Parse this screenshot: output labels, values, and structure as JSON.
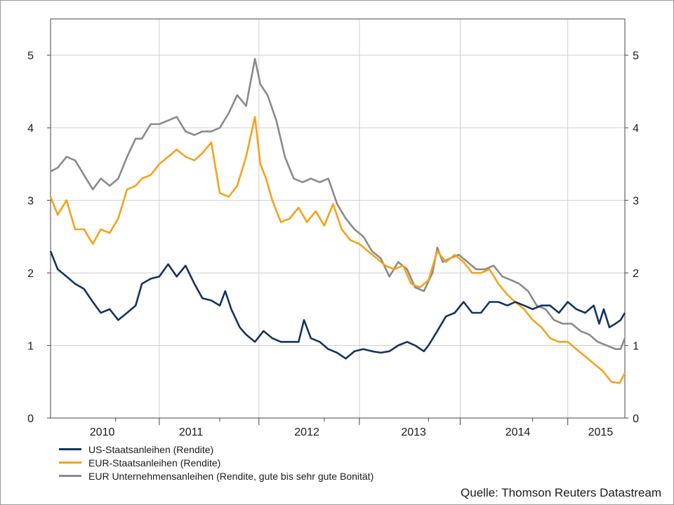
{
  "chart_data": {
    "type": "line",
    "x_tick_labels": [
      "2010",
      "2011",
      "2012",
      "2013",
      "2014",
      "2015"
    ],
    "xlim": [
      "2009-09-15",
      "2015-03-20"
    ],
    "x_label_dates": [
      "2010-03-15",
      "2011-01-20",
      "2012-03-01",
      "2013-03-10",
      "2014-03-10",
      "2014-12-25"
    ],
    "x_major_dates": [
      "2010-10-01",
      "2011-09-15",
      "2012-09-01",
      "2013-08-20",
      "2014-09-01"
    ],
    "x_minor_dates": [
      "2010-05-01",
      "2011-05-01",
      "2012-05-01",
      "2013-05-01",
      "2014-05-01"
    ],
    "ylim": [
      0,
      5.5
    ],
    "y_ticks": [
      0,
      1,
      2,
      3,
      4,
      5
    ],
    "y_tick_labels": [
      "0",
      "1",
      "2",
      "3",
      "4",
      "5"
    ],
    "grid": true,
    "legend_position": "bottom-left",
    "series": [
      {
        "name": "US-Staatsanleihen (Rendite)",
        "color": "#13335f",
        "points": [
          [
            "2009-09-15",
            2.3
          ],
          [
            "2009-10-10",
            2.05
          ],
          [
            "2009-11-10",
            1.95
          ],
          [
            "2009-12-10",
            1.85
          ],
          [
            "2010-01-10",
            1.78
          ],
          [
            "2010-02-10",
            1.6
          ],
          [
            "2010-03-10",
            1.45
          ],
          [
            "2010-04-10",
            1.5
          ],
          [
            "2010-05-10",
            1.35
          ],
          [
            "2010-06-10",
            1.45
          ],
          [
            "2010-07-10",
            1.55
          ],
          [
            "2010-08-01",
            1.85
          ],
          [
            "2010-09-01",
            1.92
          ],
          [
            "2010-10-01",
            1.95
          ],
          [
            "2010-11-01",
            2.12
          ],
          [
            "2010-12-01",
            1.95
          ],
          [
            "2011-01-01",
            2.1
          ],
          [
            "2011-02-01",
            1.85
          ],
          [
            "2011-03-01",
            1.65
          ],
          [
            "2011-04-01",
            1.62
          ],
          [
            "2011-05-01",
            1.55
          ],
          [
            "2011-05-20",
            1.75
          ],
          [
            "2011-06-10",
            1.5
          ],
          [
            "2011-07-10",
            1.25
          ],
          [
            "2011-08-01",
            1.15
          ],
          [
            "2011-09-01",
            1.05
          ],
          [
            "2011-10-01",
            1.2
          ],
          [
            "2011-11-01",
            1.1
          ],
          [
            "2011-12-01",
            1.05
          ],
          [
            "2012-01-01",
            1.05
          ],
          [
            "2012-02-01",
            1.05
          ],
          [
            "2012-02-20",
            1.35
          ],
          [
            "2012-03-15",
            1.1
          ],
          [
            "2012-04-15",
            1.05
          ],
          [
            "2012-05-15",
            0.95
          ],
          [
            "2012-06-15",
            0.9
          ],
          [
            "2012-07-15",
            0.82
          ],
          [
            "2012-08-15",
            0.92
          ],
          [
            "2012-09-15",
            0.95
          ],
          [
            "2012-10-15",
            0.92
          ],
          [
            "2012-11-15",
            0.9
          ],
          [
            "2012-12-15",
            0.92
          ],
          [
            "2013-01-15",
            1.0
          ],
          [
            "2013-02-15",
            1.05
          ],
          [
            "2013-03-15",
            1.0
          ],
          [
            "2013-04-15",
            0.92
          ],
          [
            "2013-05-01",
            1.0
          ],
          [
            "2013-06-01",
            1.2
          ],
          [
            "2013-07-01",
            1.4
          ],
          [
            "2013-08-01",
            1.45
          ],
          [
            "2013-09-01",
            1.6
          ],
          [
            "2013-10-01",
            1.45
          ],
          [
            "2013-11-01",
            1.45
          ],
          [
            "2013-12-01",
            1.6
          ],
          [
            "2014-01-01",
            1.6
          ],
          [
            "2014-02-01",
            1.55
          ],
          [
            "2014-03-01",
            1.6
          ],
          [
            "2014-04-01",
            1.55
          ],
          [
            "2014-05-01",
            1.5
          ],
          [
            "2014-06-01",
            1.55
          ],
          [
            "2014-07-01",
            1.55
          ],
          [
            "2014-08-01",
            1.45
          ],
          [
            "2014-09-01",
            1.6
          ],
          [
            "2014-10-01",
            1.5
          ],
          [
            "2014-11-01",
            1.45
          ],
          [
            "2014-12-01",
            1.55
          ],
          [
            "2014-12-20",
            1.3
          ],
          [
            "2015-01-05",
            1.5
          ],
          [
            "2015-01-25",
            1.25
          ],
          [
            "2015-02-15",
            1.3
          ],
          [
            "2015-03-05",
            1.35
          ],
          [
            "2015-03-20",
            1.45
          ]
        ]
      },
      {
        "name": "EUR-Staatsanleihen (Rendite)",
        "color": "#f6a21a",
        "points": [
          [
            "2009-09-15",
            3.05
          ],
          [
            "2009-10-10",
            2.8
          ],
          [
            "2009-11-10",
            3.0
          ],
          [
            "2009-12-10",
            2.6
          ],
          [
            "2010-01-10",
            2.6
          ],
          [
            "2010-02-10",
            2.4
          ],
          [
            "2010-03-10",
            2.6
          ],
          [
            "2010-04-10",
            2.55
          ],
          [
            "2010-05-10",
            2.75
          ],
          [
            "2010-06-10",
            3.15
          ],
          [
            "2010-07-10",
            3.2
          ],
          [
            "2010-08-01",
            3.3
          ],
          [
            "2010-09-01",
            3.35
          ],
          [
            "2010-10-01",
            3.5
          ],
          [
            "2010-11-01",
            3.6
          ],
          [
            "2010-12-01",
            3.7
          ],
          [
            "2011-01-01",
            3.6
          ],
          [
            "2011-02-01",
            3.55
          ],
          [
            "2011-03-01",
            3.65
          ],
          [
            "2011-04-01",
            3.8
          ],
          [
            "2011-05-01",
            3.1
          ],
          [
            "2011-06-01",
            3.05
          ],
          [
            "2011-07-01",
            3.2
          ],
          [
            "2011-08-01",
            3.6
          ],
          [
            "2011-09-01",
            4.15
          ],
          [
            "2011-09-20",
            3.5
          ],
          [
            "2011-10-10",
            3.3
          ],
          [
            "2011-11-01",
            3.0
          ],
          [
            "2011-12-01",
            2.7
          ],
          [
            "2012-01-01",
            2.75
          ],
          [
            "2012-02-01",
            2.9
          ],
          [
            "2012-03-01",
            2.7
          ],
          [
            "2012-04-01",
            2.85
          ],
          [
            "2012-05-01",
            2.65
          ],
          [
            "2012-06-01",
            2.95
          ],
          [
            "2012-07-01",
            2.6
          ],
          [
            "2012-08-01",
            2.45
          ],
          [
            "2012-09-01",
            2.4
          ],
          [
            "2012-10-01",
            2.3
          ],
          [
            "2012-11-01",
            2.2
          ],
          [
            "2012-12-01",
            2.1
          ],
          [
            "2013-01-01",
            2.05
          ],
          [
            "2013-02-01",
            2.1
          ],
          [
            "2013-03-01",
            1.85
          ],
          [
            "2013-04-01",
            1.8
          ],
          [
            "2013-05-01",
            1.9
          ],
          [
            "2013-06-01",
            2.3
          ],
          [
            "2013-07-01",
            2.15
          ],
          [
            "2013-08-01",
            2.25
          ],
          [
            "2013-09-01",
            2.15
          ],
          [
            "2013-10-01",
            2.0
          ],
          [
            "2013-11-01",
            2.0
          ],
          [
            "2013-12-01",
            2.05
          ],
          [
            "2014-01-01",
            1.85
          ],
          [
            "2014-02-01",
            1.7
          ],
          [
            "2014-03-01",
            1.6
          ],
          [
            "2014-04-01",
            1.5
          ],
          [
            "2014-05-01",
            1.35
          ],
          [
            "2014-06-01",
            1.25
          ],
          [
            "2014-07-01",
            1.1
          ],
          [
            "2014-08-01",
            1.05
          ],
          [
            "2014-09-01",
            1.05
          ],
          [
            "2014-10-01",
            0.95
          ],
          [
            "2014-11-01",
            0.85
          ],
          [
            "2014-12-01",
            0.75
          ],
          [
            "2015-01-01",
            0.65
          ],
          [
            "2015-02-01",
            0.5
          ],
          [
            "2015-03-01",
            0.48
          ],
          [
            "2015-03-20",
            0.62
          ]
        ]
      },
      {
        "name": "EUR Unternehmensanleihen (Rendite, gute bis sehr gute Bonität)",
        "color": "#8a8a8a",
        "points": [
          [
            "2009-09-15",
            3.4
          ],
          [
            "2009-10-10",
            3.45
          ],
          [
            "2009-11-10",
            3.6
          ],
          [
            "2009-12-10",
            3.55
          ],
          [
            "2010-01-10",
            3.35
          ],
          [
            "2010-02-10",
            3.15
          ],
          [
            "2010-03-10",
            3.3
          ],
          [
            "2010-04-10",
            3.2
          ],
          [
            "2010-05-10",
            3.3
          ],
          [
            "2010-06-10",
            3.6
          ],
          [
            "2010-07-10",
            3.85
          ],
          [
            "2010-08-01",
            3.85
          ],
          [
            "2010-09-01",
            4.05
          ],
          [
            "2010-10-01",
            4.05
          ],
          [
            "2010-11-01",
            4.1
          ],
          [
            "2010-12-01",
            4.15
          ],
          [
            "2011-01-01",
            3.95
          ],
          [
            "2011-02-01",
            3.9
          ],
          [
            "2011-03-01",
            3.95
          ],
          [
            "2011-04-01",
            3.95
          ],
          [
            "2011-05-01",
            4.0
          ],
          [
            "2011-06-01",
            4.2
          ],
          [
            "2011-07-01",
            4.45
          ],
          [
            "2011-08-01",
            4.3
          ],
          [
            "2011-09-01",
            4.95
          ],
          [
            "2011-09-20",
            4.6
          ],
          [
            "2011-10-15",
            4.45
          ],
          [
            "2011-11-15",
            4.1
          ],
          [
            "2011-12-15",
            3.6
          ],
          [
            "2012-01-15",
            3.3
          ],
          [
            "2012-02-15",
            3.25
          ],
          [
            "2012-03-15",
            3.3
          ],
          [
            "2012-04-15",
            3.25
          ],
          [
            "2012-05-15",
            3.3
          ],
          [
            "2012-06-15",
            2.95
          ],
          [
            "2012-07-15",
            2.75
          ],
          [
            "2012-08-15",
            2.6
          ],
          [
            "2012-09-15",
            2.5
          ],
          [
            "2012-10-15",
            2.3
          ],
          [
            "2012-11-15",
            2.2
          ],
          [
            "2012-12-15",
            1.95
          ],
          [
            "2013-01-15",
            2.15
          ],
          [
            "2013-02-15",
            2.05
          ],
          [
            "2013-03-15",
            1.8
          ],
          [
            "2013-04-15",
            1.75
          ],
          [
            "2013-05-15",
            2.0
          ],
          [
            "2013-06-01",
            2.35
          ],
          [
            "2013-06-20",
            2.15
          ],
          [
            "2013-07-15",
            2.2
          ],
          [
            "2013-08-15",
            2.25
          ],
          [
            "2013-09-15",
            2.15
          ],
          [
            "2013-10-15",
            2.05
          ],
          [
            "2013-11-15",
            2.05
          ],
          [
            "2013-12-15",
            2.1
          ],
          [
            "2014-01-15",
            1.95
          ],
          [
            "2014-02-15",
            1.9
          ],
          [
            "2014-03-15",
            1.85
          ],
          [
            "2014-04-15",
            1.75
          ],
          [
            "2014-05-15",
            1.55
          ],
          [
            "2014-06-15",
            1.5
          ],
          [
            "2014-07-15",
            1.35
          ],
          [
            "2014-08-15",
            1.3
          ],
          [
            "2014-09-15",
            1.3
          ],
          [
            "2014-10-15",
            1.2
          ],
          [
            "2014-11-15",
            1.15
          ],
          [
            "2014-12-15",
            1.05
          ],
          [
            "2015-01-15",
            1.0
          ],
          [
            "2015-02-15",
            0.95
          ],
          [
            "2015-03-05",
            0.95
          ],
          [
            "2015-03-20",
            1.1
          ]
        ]
      }
    ],
    "annotations": [
      "Quelle: Thomson Reuters Datastream"
    ]
  }
}
